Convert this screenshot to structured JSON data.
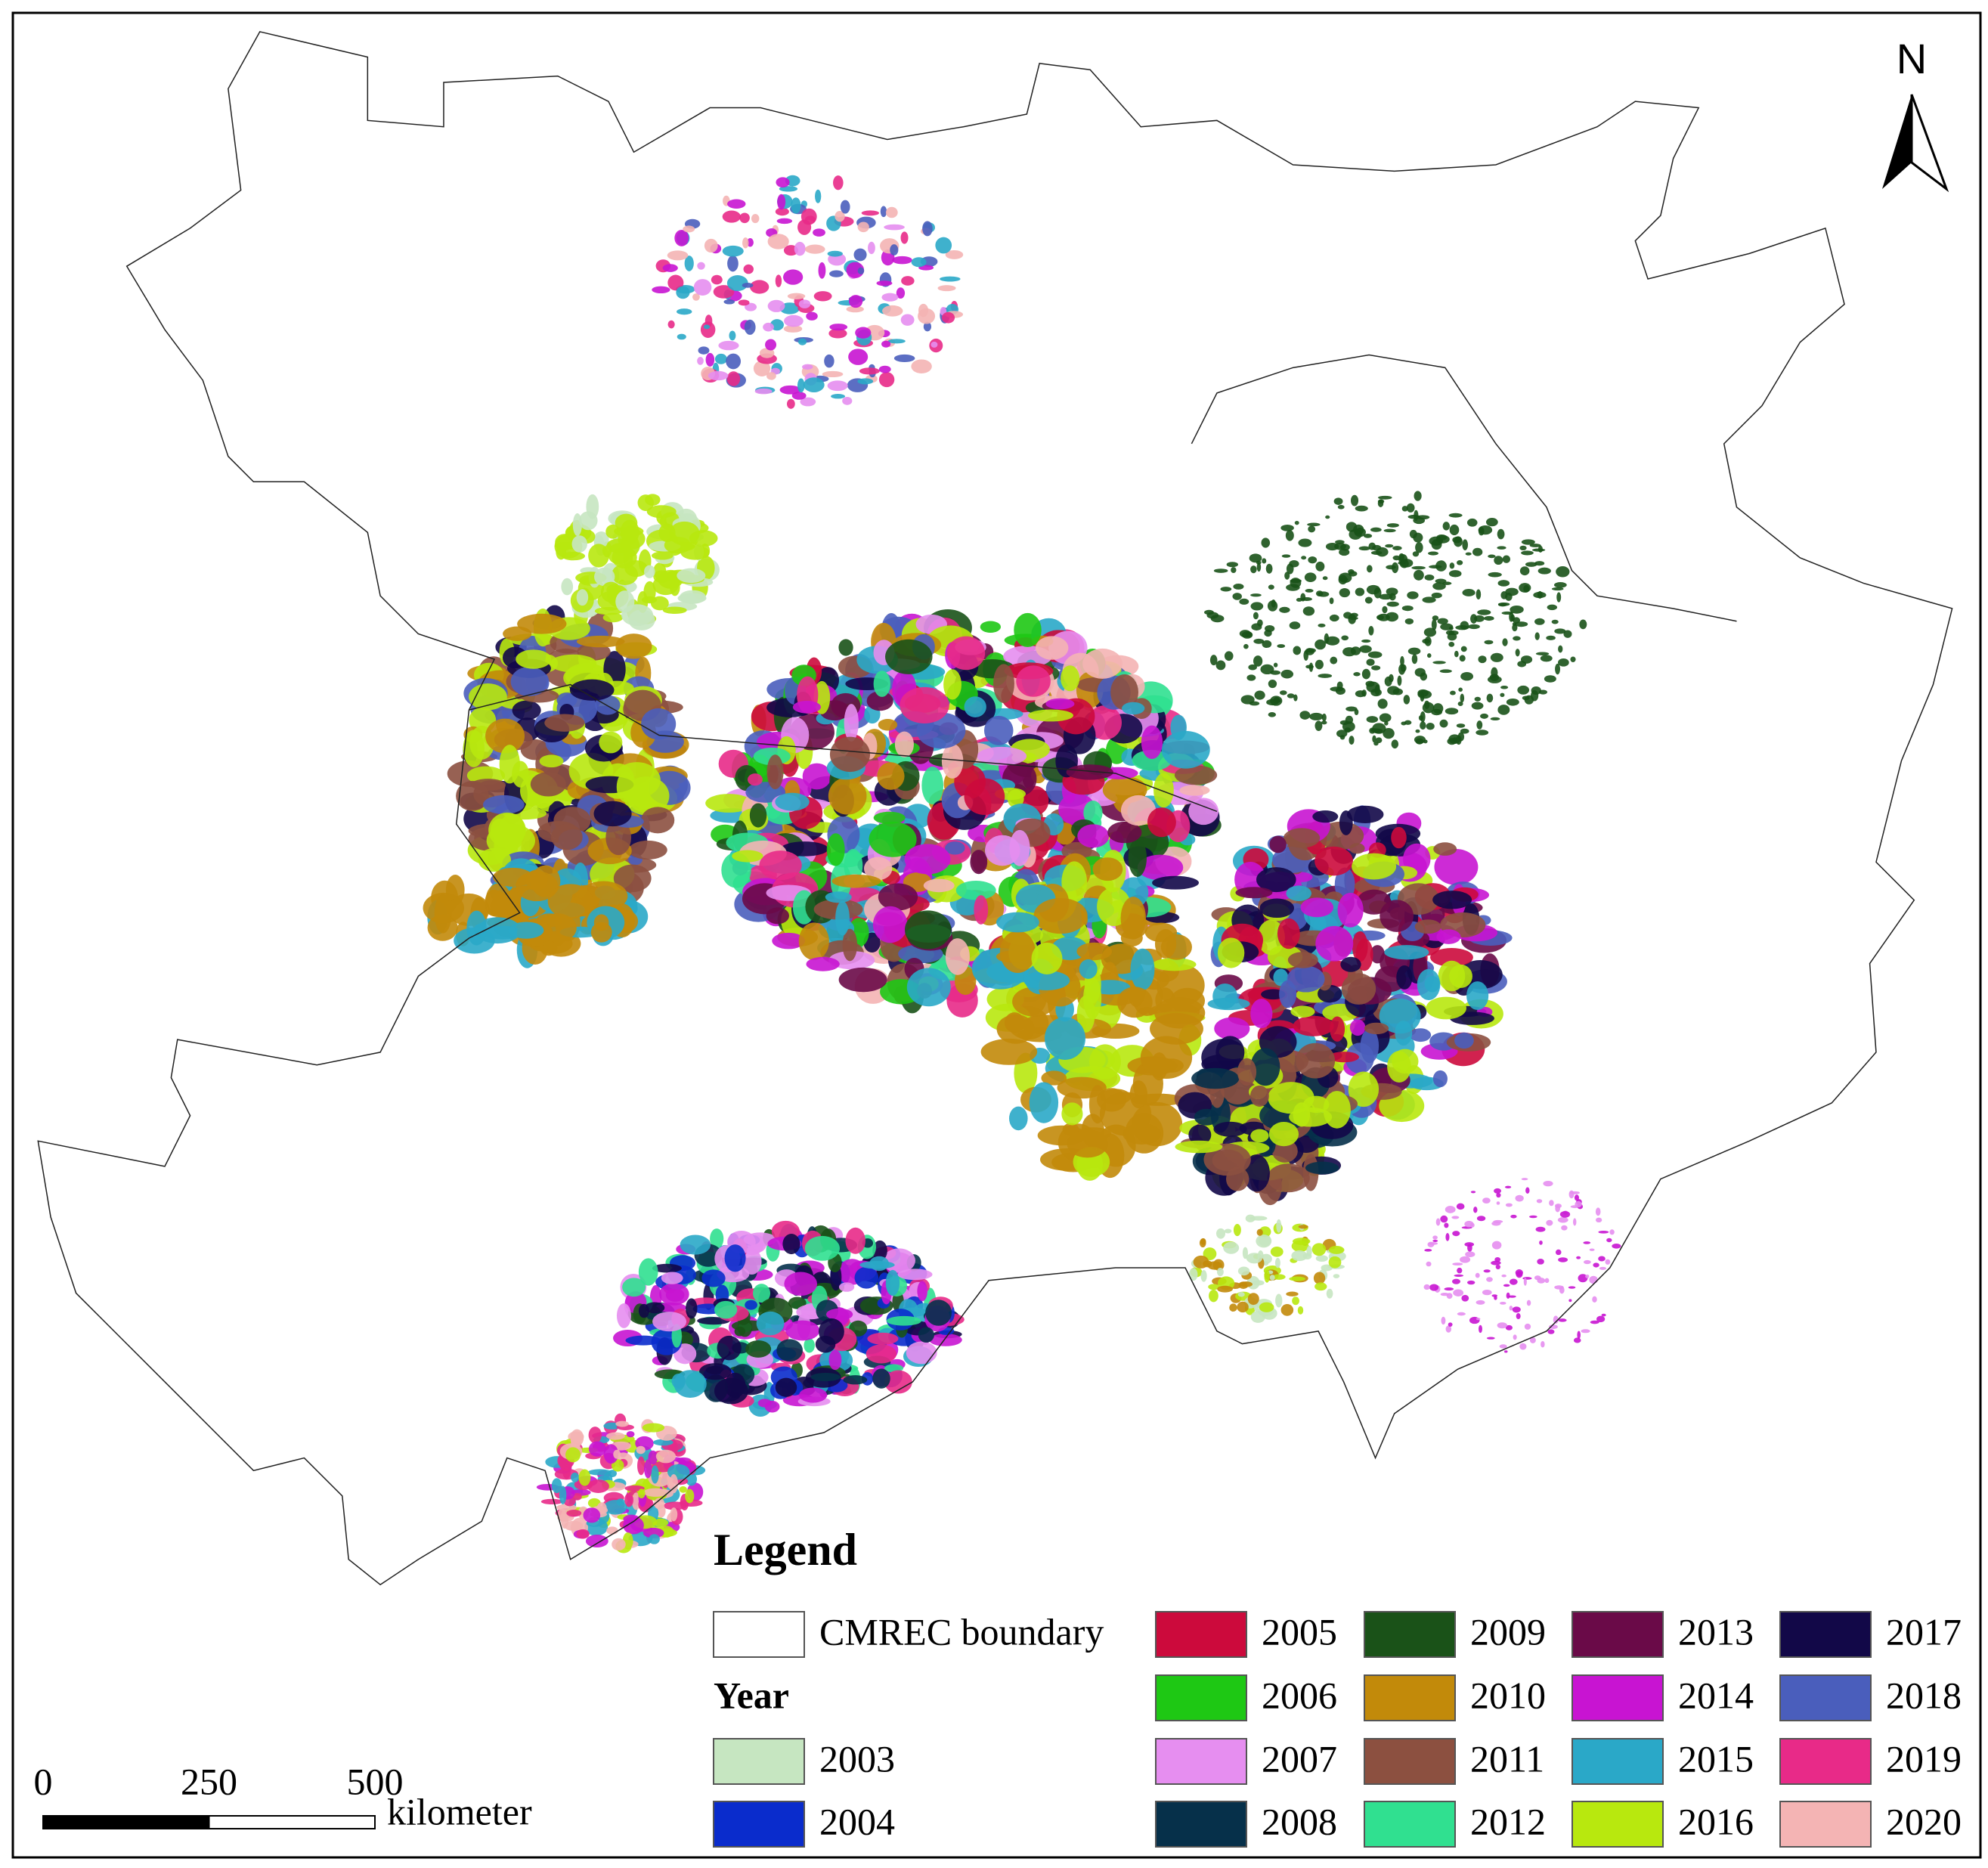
{
  "map": {
    "north_label": "N",
    "legend": {
      "title": "Legend",
      "boundary": "CMREC boundary",
      "year_heading": "Year",
      "years": [
        {
          "label": "2003",
          "color": "#c6e6c1"
        },
        {
          "label": "2004",
          "color": "#0a2ccc"
        },
        {
          "label": "2005",
          "color": "#cc0a3c"
        },
        {
          "label": "2006",
          "color": "#1ec814"
        },
        {
          "label": "2007",
          "color": "#e68ef0"
        },
        {
          "label": "2008",
          "color": "#06304a"
        },
        {
          "label": "2009",
          "color": "#1a5218"
        },
        {
          "label": "2010",
          "color": "#c28a0a"
        },
        {
          "label": "2011",
          "color": "#8c5040"
        },
        {
          "label": "2012",
          "color": "#30e090"
        },
        {
          "label": "2013",
          "color": "#6a0a48"
        },
        {
          "label": "2014",
          "color": "#c814d2"
        },
        {
          "label": "2015",
          "color": "#2aa8c8"
        },
        {
          "label": "2016",
          "color": "#b8e80e"
        },
        {
          "label": "2017",
          "color": "#120848"
        },
        {
          "label": "2018",
          "color": "#4a5ebc"
        },
        {
          "label": "2019",
          "color": "#e82a88"
        },
        {
          "label": "2020",
          "color": "#f4b4b4"
        }
      ]
    },
    "scale_bar": {
      "ticks": [
        0,
        250,
        500
      ],
      "unit": "kilometer"
    }
  }
}
